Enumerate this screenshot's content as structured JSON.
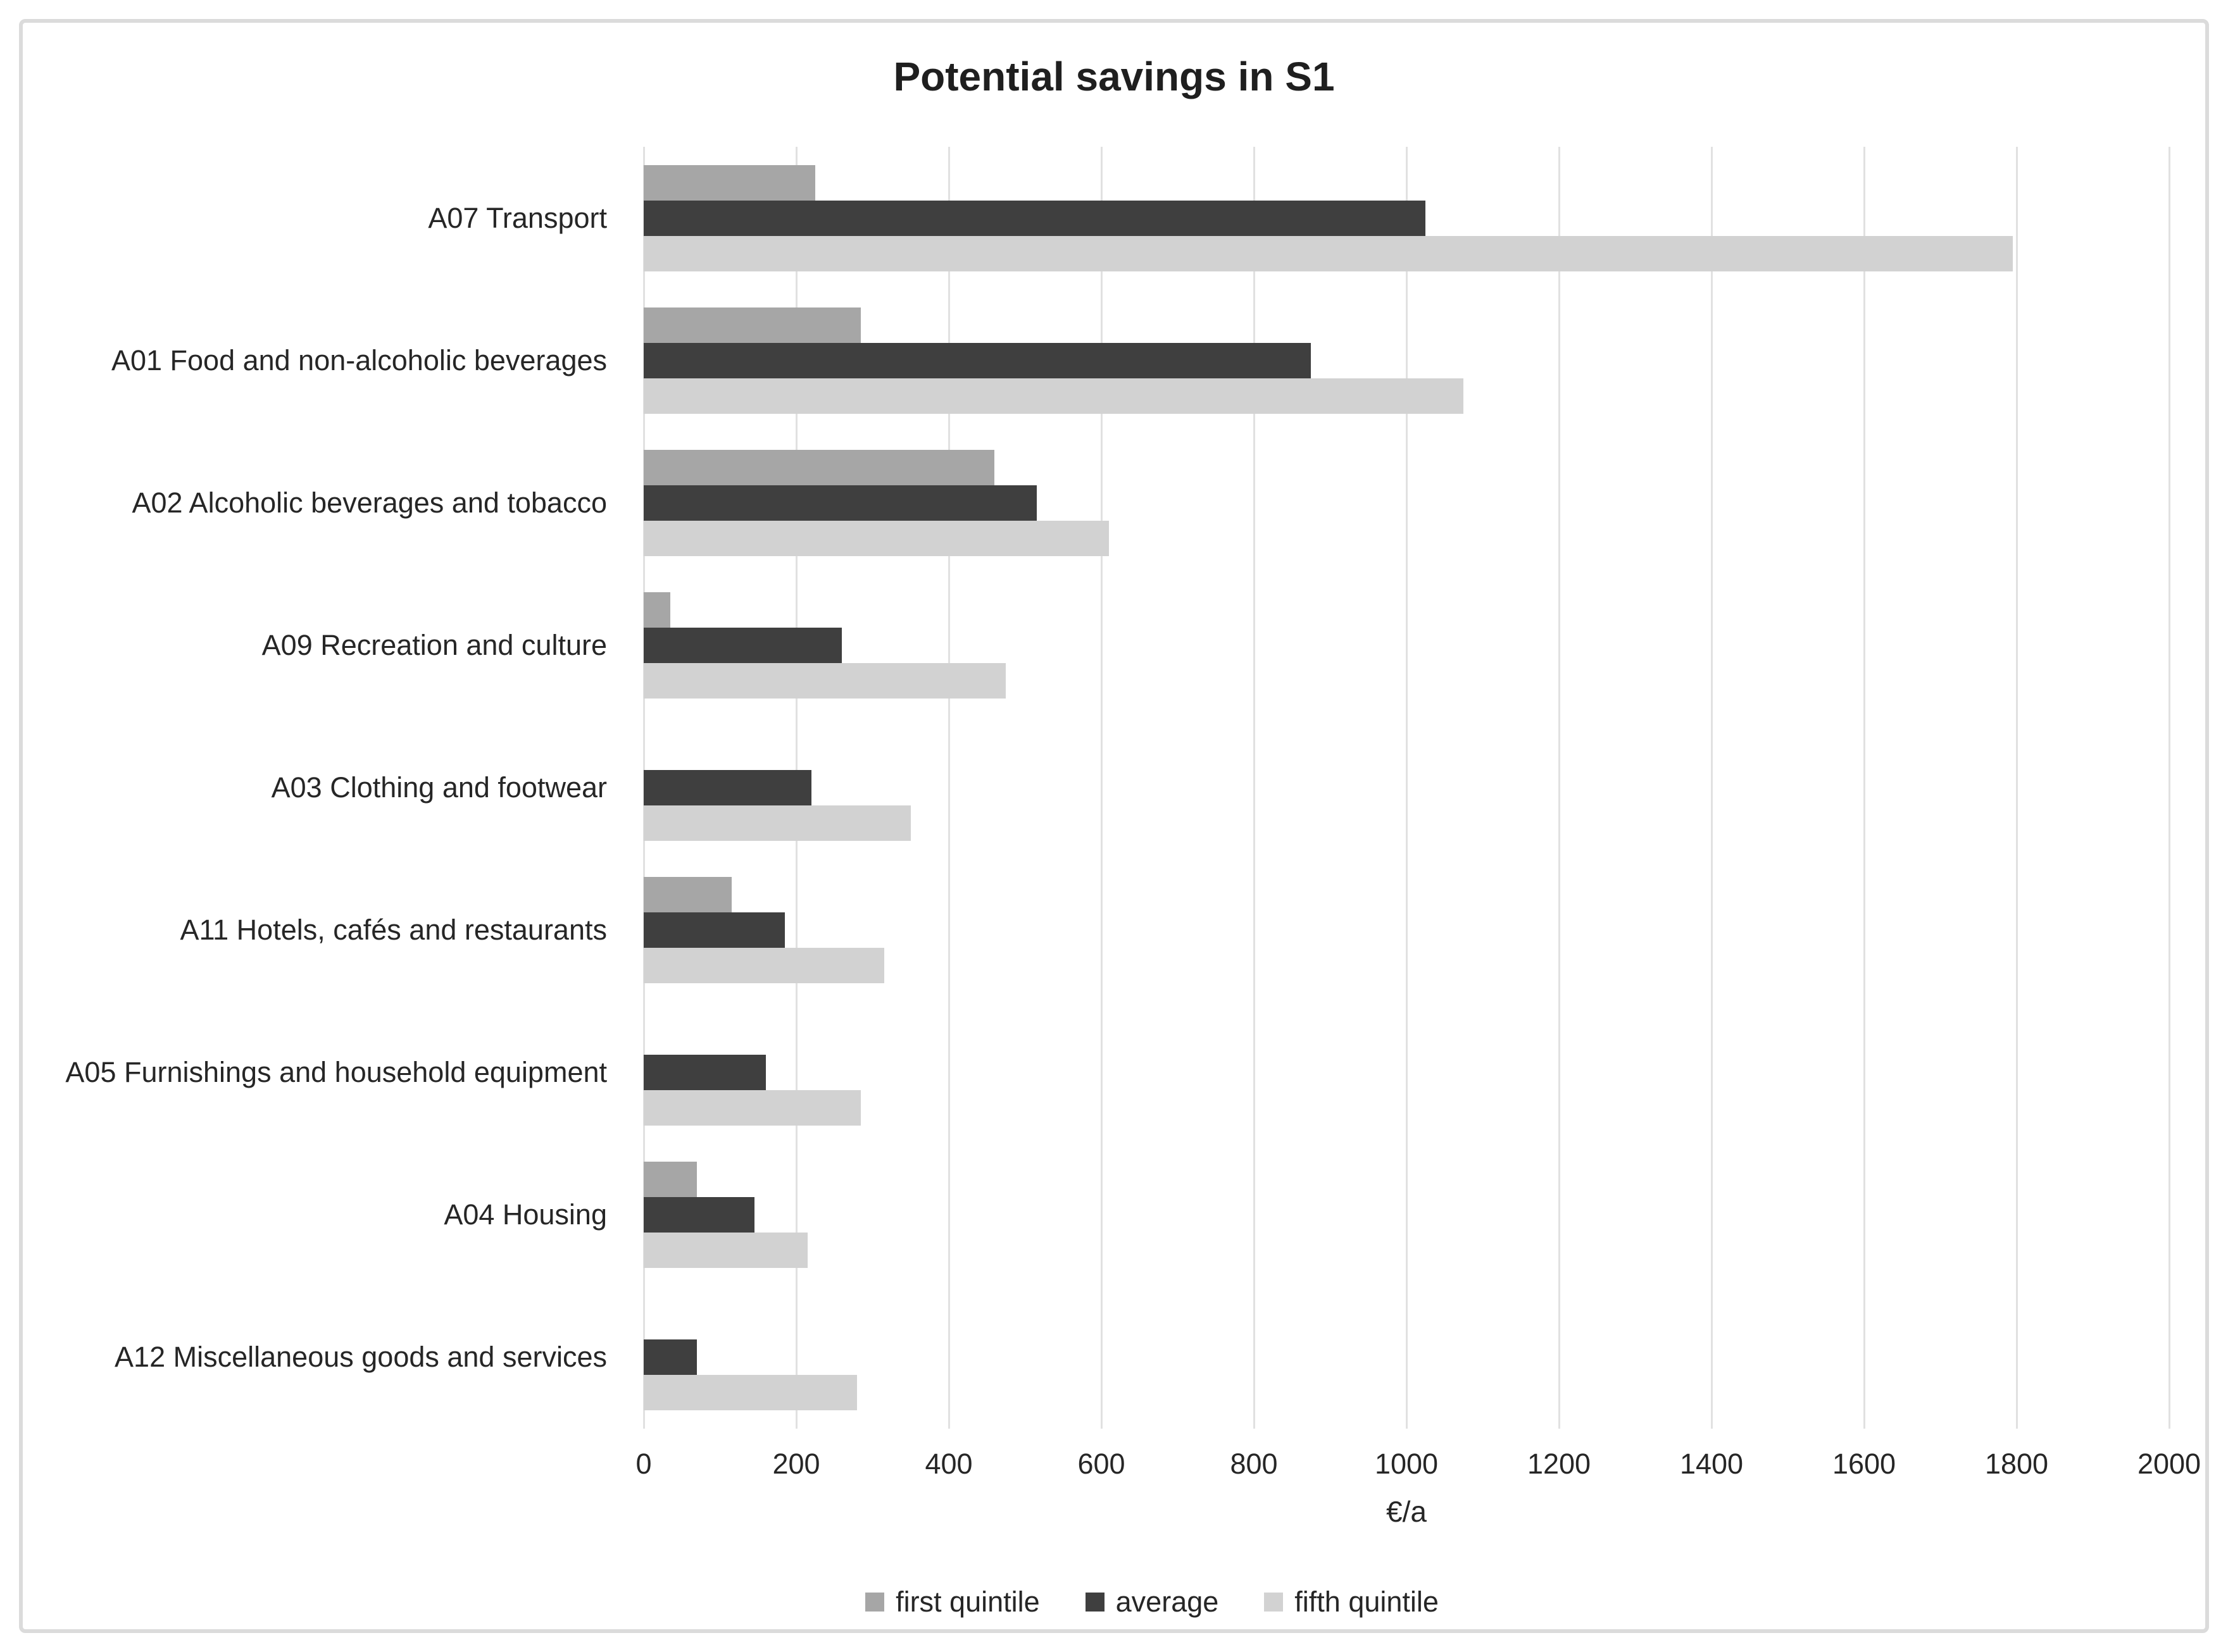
{
  "chart_data": {
    "type": "bar",
    "orientation": "horizontal",
    "title": "Potential savings in S1",
    "xlabel": "€/a",
    "xlim": [
      0,
      2000
    ],
    "xticks": [
      0,
      200,
      400,
      600,
      800,
      1000,
      1200,
      1400,
      1600,
      1800,
      2000
    ],
    "grid": true,
    "legend_position": "bottom",
    "categories": [
      "A07 Transport",
      "A01 Food and non-alcoholic beverages",
      "A02 Alcoholic beverages and tobacco",
      "A09 Recreation and culture",
      "A03 Clothing and footwear",
      "A11 Hotels, cafés and restaurants",
      "A05 Furnishings and household equipment",
      "A04 Housing",
      "A12 Miscellaneous goods and services"
    ],
    "series": [
      {
        "name": "first quintile",
        "color": "#a6a6a6",
        "values": [
          225,
          285,
          460,
          35,
          0,
          115,
          0,
          70,
          0
        ]
      },
      {
        "name": "average",
        "color": "#3f3f3f",
        "values": [
          1025,
          875,
          515,
          260,
          220,
          185,
          160,
          145,
          70
        ]
      },
      {
        "name": "fifth quintile",
        "color": "#d2d2d2",
        "values": [
          1795,
          1075,
          610,
          475,
          350,
          315,
          285,
          215,
          280
        ]
      }
    ],
    "colors": {
      "gridline": "#e1e1e1",
      "frame_border": "#dbdbdb",
      "text": "#262626",
      "title_text": "#1f1f1f",
      "background": "#ffffff"
    }
  }
}
